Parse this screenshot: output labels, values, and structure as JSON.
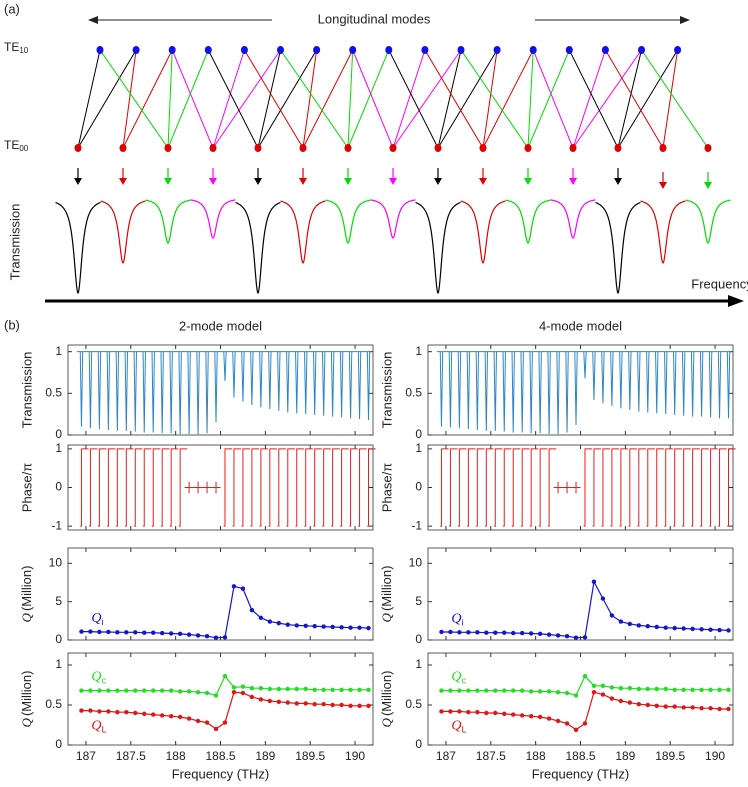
{
  "figure": {
    "panel_a_label": "(a)",
    "panel_b_label": "(b)"
  },
  "diagram": {
    "title": "Longitudinal modes",
    "upper_mode": {
      "text": "TE",
      "sub": "10"
    },
    "lower_mode": {
      "text": "TE",
      "sub": "00"
    },
    "ylabel": "Transmission",
    "xlabel": "Frequency"
  },
  "chart_data": [
    {
      "type": "spectrum",
      "title": "2-mode model",
      "ylabel": "Transmission",
      "color": "#2f86c6",
      "x": [
        186.95,
        187.05,
        187.15,
        187.25,
        187.35,
        187.45,
        187.55,
        187.65,
        187.75,
        187.85,
        187.95,
        188.05,
        188.15,
        188.25,
        188.35,
        188.45,
        188.55,
        188.65,
        188.75,
        188.85,
        188.95,
        189.05,
        189.15,
        189.25,
        189.35,
        189.45,
        189.55,
        189.65,
        189.75,
        189.85,
        189.95,
        190.05,
        190.15
      ],
      "values": [
        0.1,
        0.08,
        0.07,
        0.06,
        0.05,
        0.05,
        0.04,
        0.03,
        0.03,
        0.02,
        0.02,
        0.01,
        0.01,
        0,
        0.02,
        0.15,
        0.65,
        0.45,
        0.4,
        0.36,
        0.33,
        0.31,
        0.29,
        0.27,
        0.26,
        0.25,
        0.24,
        0.23,
        0.22,
        0.21,
        0.2,
        0.19,
        0.18
      ],
      "xlim": [
        186.8,
        190.2
      ],
      "xticks": [
        187,
        187.5,
        188,
        188.5,
        189,
        189.5,
        190
      ],
      "ylim": [
        0,
        1.08
      ],
      "yticks": [
        0,
        0.5,
        1
      ]
    },
    {
      "type": "phase",
      "ylabel": "Phase/π",
      "color": "#e02020",
      "x": [
        186.95,
        187.05,
        187.15,
        187.25,
        187.35,
        187.45,
        187.55,
        187.65,
        187.75,
        187.85,
        187.95,
        188.05,
        188.15,
        188.25,
        188.35,
        188.45,
        188.55,
        188.65,
        188.75,
        188.85,
        188.95,
        189.05,
        189.15,
        189.25,
        189.35,
        189.45,
        189.55,
        189.65,
        189.75,
        189.85,
        189.95,
        190.05,
        190.15
      ],
      "values": [
        1,
        1,
        1,
        1,
        1,
        1,
        1,
        1,
        1,
        1,
        1,
        1,
        0.15,
        0.15,
        0.15,
        0.15,
        1,
        1,
        1,
        1,
        1,
        1,
        1,
        1,
        1,
        1,
        1,
        1,
        1,
        1,
        1,
        1,
        1
      ],
      "xlim": [
        186.8,
        190.2
      ],
      "xticks": [
        187,
        187.5,
        188,
        188.5,
        189,
        189.5,
        190
      ],
      "ylim": [
        -1.1,
        1.1
      ],
      "yticks": [
        -1,
        0,
        1
      ]
    },
    {
      "type": "line",
      "ylabel_symbol": "Q",
      "ylabel": "(Million)",
      "x": [
        186.95,
        187.05,
        187.15,
        187.25,
        187.35,
        187.45,
        187.55,
        187.65,
        187.75,
        187.85,
        187.95,
        188.05,
        188.15,
        188.25,
        188.35,
        188.45,
        188.55,
        188.65,
        188.75,
        188.85,
        188.95,
        189.05,
        189.15,
        189.25,
        189.35,
        189.45,
        189.55,
        189.65,
        189.75,
        189.85,
        189.95,
        190.05,
        190.15
      ],
      "series": [
        {
          "name": "Q",
          "subscript": "i",
          "color": "#1515d0",
          "values": [
            1.1,
            1.1,
            1.05,
            1.05,
            1.0,
            1.0,
            1.0,
            0.95,
            0.95,
            0.9,
            0.85,
            0.8,
            0.7,
            0.6,
            0.5,
            0.3,
            0.35,
            7.0,
            6.7,
            3.9,
            2.9,
            2.4,
            2.2,
            2.0,
            1.9,
            1.85,
            1.8,
            1.75,
            1.7,
            1.65,
            1.6,
            1.6,
            1.55
          ]
        }
      ],
      "xlim": [
        186.8,
        190.2
      ],
      "xticks": [
        187,
        187.5,
        188,
        188.5,
        189,
        189.5,
        190
      ],
      "ylim": [
        0,
        12
      ],
      "yticks": [
        0,
        5,
        10
      ]
    },
    {
      "type": "line",
      "ylabel_symbol": "Q",
      "ylabel": "(Million)",
      "xlabel": "Frequency (THz)",
      "x": [
        186.95,
        187.05,
        187.15,
        187.25,
        187.35,
        187.45,
        187.55,
        187.65,
        187.75,
        187.85,
        187.95,
        188.05,
        188.15,
        188.25,
        188.35,
        188.45,
        188.55,
        188.65,
        188.75,
        188.85,
        188.95,
        189.05,
        189.15,
        189.25,
        189.35,
        189.45,
        189.55,
        189.65,
        189.75,
        189.85,
        189.95,
        190.05,
        190.15
      ],
      "series": [
        {
          "name": "Q",
          "subscript": "c",
          "color": "#22dd22",
          "values": [
            0.68,
            0.68,
            0.68,
            0.68,
            0.68,
            0.68,
            0.68,
            0.68,
            0.68,
            0.68,
            0.68,
            0.67,
            0.67,
            0.66,
            0.65,
            0.62,
            0.86,
            0.72,
            0.73,
            0.71,
            0.71,
            0.7,
            0.7,
            0.7,
            0.7,
            0.7,
            0.69,
            0.69,
            0.69,
            0.69,
            0.69,
            0.69,
            0.69
          ]
        },
        {
          "name": "Q",
          "subscript": "L",
          "color": "#e01515",
          "values": [
            0.43,
            0.43,
            0.42,
            0.42,
            0.41,
            0.41,
            0.4,
            0.39,
            0.38,
            0.37,
            0.36,
            0.35,
            0.33,
            0.3,
            0.28,
            0.2,
            0.28,
            0.66,
            0.65,
            0.6,
            0.57,
            0.55,
            0.54,
            0.53,
            0.52,
            0.52,
            0.51,
            0.51,
            0.5,
            0.5,
            0.49,
            0.49,
            0.49
          ]
        }
      ],
      "xlim": [
        186.8,
        190.2
      ],
      "xticks": [
        187,
        187.5,
        188,
        188.5,
        189,
        189.5,
        190
      ],
      "ylim": [
        0,
        1.15
      ],
      "yticks": [
        0,
        0.5,
        1
      ]
    },
    {
      "type": "spectrum",
      "title": "4-mode model",
      "ylabel": "Transmission",
      "color": "#2f86c6",
      "x": [
        186.95,
        187.05,
        187.15,
        187.25,
        187.35,
        187.45,
        187.55,
        187.65,
        187.75,
        187.85,
        187.95,
        188.05,
        188.15,
        188.25,
        188.35,
        188.45,
        188.55,
        188.65,
        188.75,
        188.85,
        188.95,
        189.05,
        189.15,
        189.25,
        189.35,
        189.45,
        189.55,
        189.65,
        189.75,
        189.85,
        189.95,
        190.05,
        190.15
      ],
      "values": [
        0.1,
        0.09,
        0.08,
        0.07,
        0.06,
        0.05,
        0.05,
        0.04,
        0.03,
        0.03,
        0.02,
        0.02,
        0.01,
        0.01,
        0.03,
        0.12,
        0.68,
        0.42,
        0.38,
        0.35,
        0.32,
        0.3,
        0.28,
        0.27,
        0.26,
        0.25,
        0.24,
        0.23,
        0.22,
        0.22,
        0.21,
        0.2,
        0.2
      ],
      "xlim": [
        186.8,
        190.2
      ],
      "xticks": [
        187,
        187.5,
        188,
        188.5,
        189,
        189.5,
        190
      ],
      "ylim": [
        0,
        1.08
      ],
      "yticks": [
        0,
        0.5,
        1
      ]
    },
    {
      "type": "phase",
      "ylabel": "Phase/π",
      "color": "#e02020",
      "x": [
        186.95,
        187.05,
        187.15,
        187.25,
        187.35,
        187.45,
        187.55,
        187.65,
        187.75,
        187.85,
        187.95,
        188.05,
        188.15,
        188.25,
        188.35,
        188.45,
        188.55,
        188.65,
        188.75,
        188.85,
        188.95,
        189.05,
        189.15,
        189.25,
        189.35,
        189.45,
        189.55,
        189.65,
        189.75,
        189.85,
        189.95,
        190.05,
        190.15
      ],
      "values": [
        1,
        1,
        1,
        1,
        1,
        1,
        1,
        1,
        1,
        1,
        1,
        1,
        1,
        0.15,
        0.15,
        0.15,
        1,
        1,
        1,
        1,
        1,
        1,
        1,
        1,
        1,
        1,
        1,
        1,
        1,
        1,
        1,
        1,
        1
      ],
      "xlim": [
        186.8,
        190.2
      ],
      "xticks": [
        187,
        187.5,
        188,
        188.5,
        189,
        189.5,
        190
      ],
      "ylim": [
        -1.1,
        1.1
      ],
      "yticks": [
        -1,
        0,
        1
      ]
    },
    {
      "type": "line",
      "ylabel_symbol": "Q",
      "ylabel": "(Million)",
      "x": [
        186.95,
        187.05,
        187.15,
        187.25,
        187.35,
        187.45,
        187.55,
        187.65,
        187.75,
        187.85,
        187.95,
        188.05,
        188.15,
        188.25,
        188.35,
        188.45,
        188.55,
        188.65,
        188.75,
        188.85,
        188.95,
        189.05,
        189.15,
        189.25,
        189.35,
        189.45,
        189.55,
        189.65,
        189.75,
        189.85,
        189.95,
        190.05,
        190.15
      ],
      "series": [
        {
          "name": "Q",
          "subscript": "i",
          "color": "#1515d0",
          "values": [
            1.05,
            1.05,
            1.0,
            1.0,
            1.0,
            0.95,
            0.95,
            0.95,
            0.9,
            0.9,
            0.85,
            0.8,
            0.7,
            0.6,
            0.5,
            0.3,
            0.35,
            7.6,
            5.4,
            3.2,
            2.4,
            2.1,
            1.9,
            1.8,
            1.7,
            1.6,
            1.55,
            1.5,
            1.45,
            1.4,
            1.35,
            1.3,
            1.25
          ]
        }
      ],
      "xlim": [
        186.8,
        190.2
      ],
      "xticks": [
        187,
        187.5,
        188,
        188.5,
        189,
        189.5,
        190
      ],
      "ylim": [
        0,
        12
      ],
      "yticks": [
        0,
        5,
        10
      ]
    },
    {
      "type": "line",
      "ylabel_symbol": "Q",
      "ylabel": "(Million)",
      "xlabel": "Frequency (THz)",
      "x": [
        186.95,
        187.05,
        187.15,
        187.25,
        187.35,
        187.45,
        187.55,
        187.65,
        187.75,
        187.85,
        187.95,
        188.05,
        188.15,
        188.25,
        188.35,
        188.45,
        188.55,
        188.65,
        188.75,
        188.85,
        188.95,
        189.05,
        189.15,
        189.25,
        189.35,
        189.45,
        189.55,
        189.65,
        189.75,
        189.85,
        189.95,
        190.05,
        190.15
      ],
      "series": [
        {
          "name": "Q",
          "subscript": "c",
          "color": "#22dd22",
          "values": [
            0.68,
            0.68,
            0.68,
            0.68,
            0.68,
            0.68,
            0.68,
            0.68,
            0.68,
            0.68,
            0.67,
            0.67,
            0.67,
            0.66,
            0.65,
            0.62,
            0.86,
            0.74,
            0.74,
            0.72,
            0.71,
            0.71,
            0.7,
            0.7,
            0.7,
            0.7,
            0.69,
            0.69,
            0.69,
            0.69,
            0.69,
            0.69,
            0.69
          ]
        },
        {
          "name": "Q",
          "subscript": "L",
          "color": "#e01515",
          "values": [
            0.42,
            0.42,
            0.42,
            0.41,
            0.41,
            0.4,
            0.4,
            0.39,
            0.38,
            0.37,
            0.36,
            0.35,
            0.33,
            0.3,
            0.27,
            0.19,
            0.27,
            0.66,
            0.63,
            0.58,
            0.55,
            0.53,
            0.51,
            0.5,
            0.49,
            0.48,
            0.48,
            0.47,
            0.47,
            0.46,
            0.46,
            0.45,
            0.45
          ]
        }
      ],
      "xlim": [
        186.8,
        190.2
      ],
      "xticks": [
        187,
        187.5,
        188,
        188.5,
        189,
        189.5,
        190
      ],
      "ylim": [
        0,
        1.15
      ],
      "yticks": [
        0,
        0.5,
        1
      ]
    }
  ]
}
